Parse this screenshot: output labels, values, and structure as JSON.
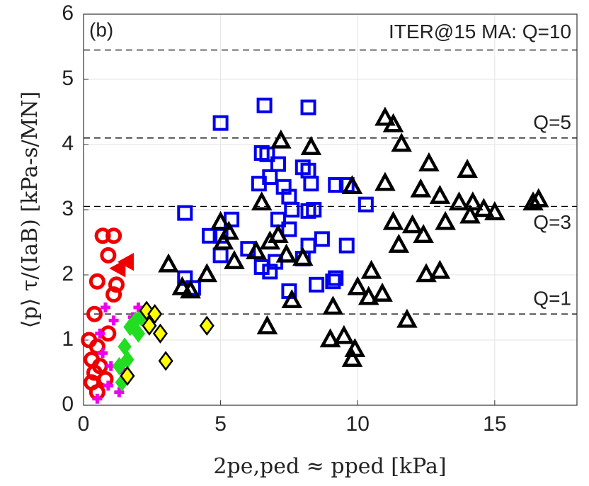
{
  "chart_data": {
    "type": "scatter",
    "panel_label": "(b)",
    "xlabel": "2pe,ped ≈ pped [kPa]",
    "ylabel": "⟨p⟩ τ/(IaB) [kPa-s/MN]",
    "xlim": [
      0,
      18
    ],
    "ylim": [
      0,
      6
    ],
    "xticks": [
      0,
      5,
      10,
      15
    ],
    "yticks": [
      0,
      1,
      2,
      3,
      4,
      5,
      6
    ],
    "grid": true,
    "hlines": [
      {
        "value": 5.45,
        "label": "ITER@15 MA: Q=10"
      },
      {
        "value": 4.1,
        "label": "Q=5"
      },
      {
        "value": 3.05,
        "label": "Q=3"
      },
      {
        "value": 1.4,
        "label": "Q=1"
      }
    ],
    "series": [
      {
        "marker": "square",
        "color": "#0000ee",
        "x": [
          5.0,
          6.6,
          8.2,
          6.5,
          6.7,
          7.1,
          6.4,
          6.8,
          7.3,
          7.5,
          7.6,
          8.0,
          8.2,
          8.3,
          9.2,
          9.6,
          10.3,
          8.2,
          3.7,
          5.4,
          4.6,
          5.0,
          5.0,
          6.0,
          6.5,
          6.8,
          7.0,
          8.0,
          8.2,
          8.7,
          9.6,
          8.5,
          9.2,
          9.1,
          7.5,
          3.7,
          4.0,
          7.1,
          7.5,
          8.4
        ],
        "values": [
          4.33,
          4.6,
          4.57,
          3.87,
          3.85,
          3.7,
          3.4,
          3.5,
          3.35,
          3.2,
          3.0,
          3.65,
          3.6,
          3.4,
          3.38,
          3.38,
          3.08,
          2.98,
          2.95,
          2.85,
          2.6,
          2.6,
          2.3,
          2.4,
          2.12,
          2.05,
          2.2,
          2.25,
          2.45,
          2.55,
          2.45,
          1.85,
          1.95,
          1.9,
          1.75,
          1.95,
          1.8,
          2.85,
          2.7,
          3.0
        ]
      },
      {
        "marker": "triangle",
        "color": "#000000",
        "x": [
          11,
          11.3,
          11.6,
          7.2,
          8.3,
          12.6,
          14,
          9.8,
          11,
          12.3,
          13,
          13.7,
          14.2,
          14.6,
          15,
          16.6,
          16.4,
          13.2,
          14.1,
          11.3,
          12,
          12.4,
          11.5,
          6.5,
          5.0,
          5.3,
          6.8,
          7.1,
          7.4,
          8.0,
          6.3,
          5.1,
          5.5,
          3.1,
          4.5,
          3.6,
          3.9,
          10.5,
          12.5,
          13.0,
          10.0,
          10.4,
          10.9,
          7.6,
          9.1,
          6.7,
          11.8,
          9.0,
          9.5,
          9.9,
          9.8
        ],
        "values": [
          4.4,
          4.3,
          4.0,
          4.05,
          3.95,
          3.7,
          3.6,
          3.35,
          3.4,
          3.3,
          3.2,
          3.1,
          3.1,
          3.0,
          2.95,
          3.15,
          3.1,
          2.8,
          2.9,
          2.8,
          2.75,
          2.6,
          2.45,
          3.1,
          2.8,
          2.65,
          2.5,
          2.6,
          2.3,
          2.25,
          2.35,
          2.5,
          2.2,
          2.15,
          2.0,
          1.8,
          1.75,
          2.05,
          2.0,
          2.05,
          1.8,
          1.65,
          1.7,
          1.6,
          1.5,
          1.2,
          1.3,
          1.0,
          1.05,
          0.85,
          0.7
        ]
      },
      {
        "marker": "circle",
        "color": "#ee0000",
        "x": [
          0.7,
          1.1,
          0.9,
          0.5,
          1.2,
          1.1,
          0.4,
          0.9,
          0.5,
          0.3,
          0.4,
          0.3,
          0.5,
          0.6,
          0.8,
          0.2
        ],
        "values": [
          2.6,
          2.6,
          2.3,
          1.9,
          1.85,
          1.7,
          1.4,
          1.1,
          0.9,
          0.7,
          0.5,
          0.35,
          0.2,
          0.6,
          0.4,
          1.0
        ]
      },
      {
        "marker": "triangle-left",
        "color": "#ee0000",
        "x": [
          1.6,
          1.3
        ],
        "values": [
          2.2,
          2.1
        ]
      },
      {
        "marker": "plus",
        "color": "#ee00ee",
        "x": [
          0.8,
          1.1,
          0.7,
          0.9,
          0.5,
          1.0,
          1.3,
          1.5,
          2.0,
          1.8,
          0.6
        ],
        "values": [
          1.5,
          1.3,
          0.8,
          0.3,
          0.1,
          0.6,
          0.2,
          0.5,
          1.5,
          1.35,
          1.1
        ]
      },
      {
        "marker": "diamond-filled",
        "color": "#22dd22",
        "x": [
          1.7,
          2.0,
          1.5,
          1.6,
          1.9,
          2.1,
          1.3,
          1.4
        ],
        "values": [
          1.2,
          1.1,
          0.9,
          0.7,
          1.3,
          1.35,
          0.6,
          0.35
        ]
      },
      {
        "marker": "diamond",
        "color": "#ffff00",
        "x": [
          2.3,
          2.6,
          2.4,
          2.8,
          4.5,
          3.0,
          1.6
        ],
        "values": [
          1.45,
          1.4,
          1.22,
          1.1,
          1.22,
          0.68,
          0.45
        ]
      }
    ]
  }
}
